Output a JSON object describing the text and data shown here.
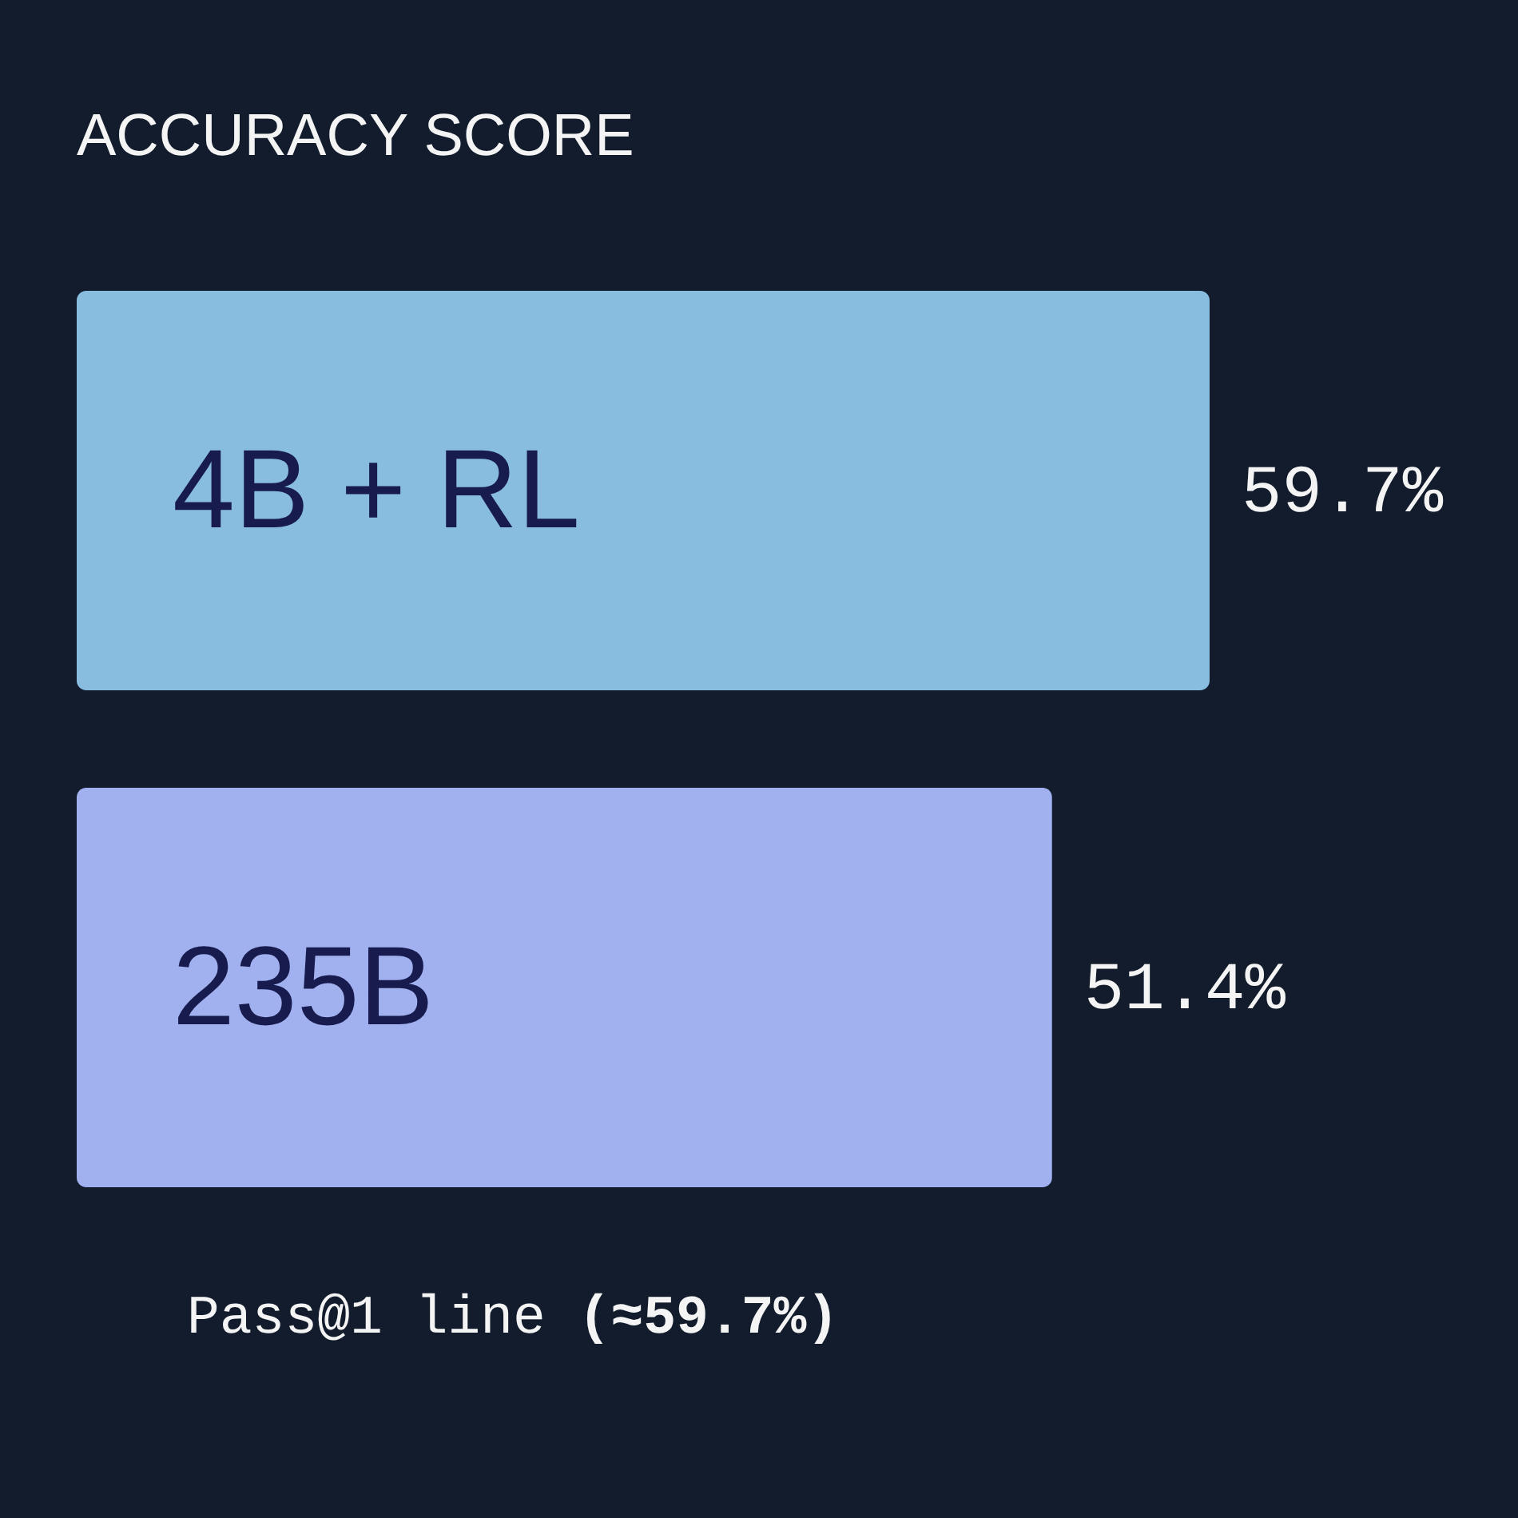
{
  "chart_data": {
    "type": "bar",
    "orientation": "horizontal",
    "title": "ACCURACY SCORE",
    "categories": [
      "4B + RL",
      "235B"
    ],
    "values": [
      59.7,
      51.4
    ],
    "colors": [
      "#88bde0",
      "#a1b0ef"
    ],
    "value_labels": [
      "59.7%",
      "51.4%"
    ],
    "tick_labels": false,
    "annotations": [
      "Pass@1 line",
      "(≈59.7%)"
    ]
  }
}
